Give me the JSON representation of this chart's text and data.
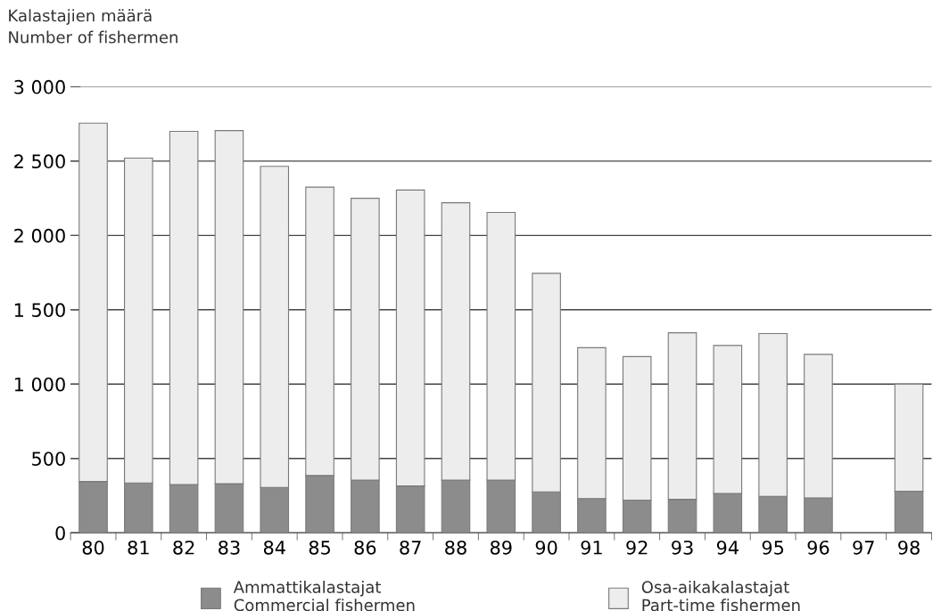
{
  "chart_data": {
    "type": "bar",
    "stacked": true,
    "ylabel": "Kalastajien määrä\nNumber of fishermen",
    "categories": [
      "80",
      "81",
      "82",
      "83",
      "84",
      "85",
      "86",
      "87",
      "88",
      "89",
      "90",
      "91",
      "92",
      "93",
      "94",
      "95",
      "96",
      "97",
      "98"
    ],
    "series": [
      {
        "name": "Ammattikalastajat\nCommercial fishermen",
        "color": "#8c8c8c",
        "values": [
          345,
          335,
          325,
          330,
          305,
          385,
          355,
          315,
          355,
          355,
          275,
          230,
          220,
          225,
          265,
          245,
          235,
          null,
          280
        ]
      },
      {
        "name": "Osa-aikakalastajat\nPart-time fishermen",
        "color": "#ededed",
        "values": [
          2410,
          2185,
          2375,
          2375,
          2160,
          1940,
          1895,
          1990,
          1865,
          1800,
          1470,
          1015,
          965,
          1120,
          995,
          1095,
          965,
          null,
          720
        ]
      }
    ],
    "ylim": [
      0,
      3000
    ],
    "yticks": [
      0,
      {
        "value": 500,
        "label": "500"
      },
      {
        "value": 1000,
        "label": "1 000"
      },
      {
        "value": 1500,
        "label": "1 500"
      },
      {
        "value": 2000,
        "label": "2 000"
      },
      {
        "value": 2500,
        "label": "2 500"
      },
      {
        "value": 3000,
        "label": "3 000"
      }
    ],
    "grid": "y",
    "legend": "bottom"
  }
}
